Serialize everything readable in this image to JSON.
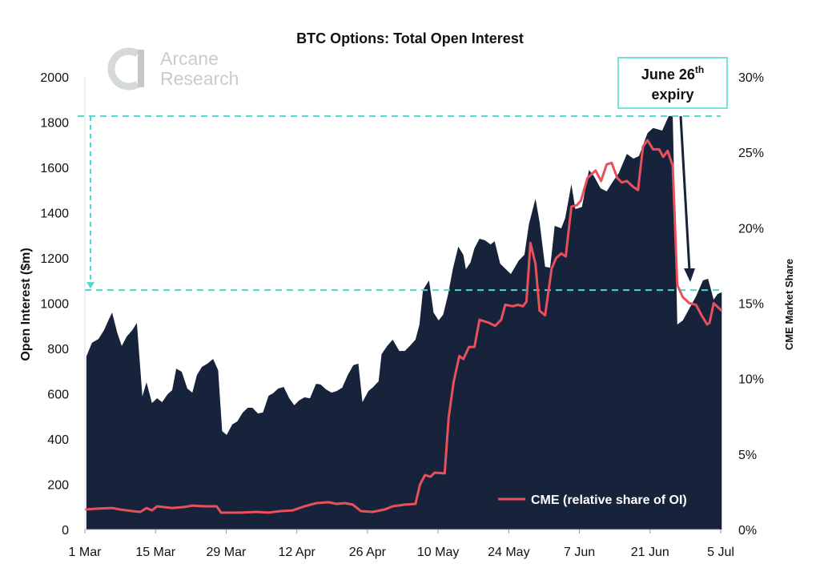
{
  "chart_data": {
    "type": "area",
    "title": "BTC Options: Total Open Interest",
    "ylabel": "Open Interest ($m)",
    "y2label": "CME Market Share",
    "ylim": [
      0,
      2000
    ],
    "y2lim": [
      0,
      30
    ],
    "yticks": [
      "0",
      "200",
      "400",
      "600",
      "800",
      "1000",
      "1200",
      "1400",
      "1600",
      "1800",
      "2000"
    ],
    "y2ticks": [
      "0%",
      "5%",
      "10%",
      "15%",
      "20%",
      "25%",
      "30%"
    ],
    "xlim_days_from_1_mar": [
      0,
      126
    ],
    "xticks": [
      {
        "day": 0,
        "label": "1 Mar"
      },
      {
        "day": 14,
        "label": "15 Mar"
      },
      {
        "day": 28,
        "label": "29 Mar"
      },
      {
        "day": 42,
        "label": "12 Apr"
      },
      {
        "day": 56,
        "label": "26 Apr"
      },
      {
        "day": 70,
        "label": "10 May"
      },
      {
        "day": 84,
        "label": "24 May"
      },
      {
        "day": 98,
        "label": "7 Jun"
      },
      {
        "day": 112,
        "label": "21 Jun"
      },
      {
        "day": 126,
        "label": "5 Jul"
      }
    ],
    "series": [
      {
        "name": "Total Open Interest ($m)",
        "kind": "area",
        "axis": "left",
        "color": "#16233a",
        "points": [
          [
            0.3,
            765
          ],
          [
            1.4,
            825
          ],
          [
            2.7,
            842
          ],
          [
            3.8,
            881
          ],
          [
            4.8,
            931
          ],
          [
            5.4,
            959
          ],
          [
            6.4,
            871
          ],
          [
            7.3,
            811
          ],
          [
            8.3,
            853
          ],
          [
            9.4,
            881
          ],
          [
            10.3,
            913
          ],
          [
            11.4,
            588
          ],
          [
            12.2,
            651
          ],
          [
            13.3,
            559
          ],
          [
            14.3,
            580
          ],
          [
            15.3,
            563
          ],
          [
            16.4,
            598
          ],
          [
            17.3,
            616
          ],
          [
            18.1,
            711
          ],
          [
            19.2,
            697
          ],
          [
            20.3,
            623
          ],
          [
            21.3,
            605
          ],
          [
            22.2,
            683
          ],
          [
            23.2,
            719
          ],
          [
            24.3,
            733
          ],
          [
            25.4,
            754
          ],
          [
            26.4,
            704
          ],
          [
            27.2,
            435
          ],
          [
            28.1,
            418
          ],
          [
            29.2,
            464
          ],
          [
            30.2,
            478
          ],
          [
            31.3,
            517
          ],
          [
            32.3,
            538
          ],
          [
            33.2,
            538
          ],
          [
            34.3,
            513
          ],
          [
            35.3,
            517
          ],
          [
            36.4,
            591
          ],
          [
            37.3,
            602
          ],
          [
            38.3,
            623
          ],
          [
            39.4,
            630
          ],
          [
            40.5,
            580
          ],
          [
            41.5,
            549
          ],
          [
            42.4,
            570
          ],
          [
            43.5,
            584
          ],
          [
            44.6,
            580
          ],
          [
            45.8,
            644
          ],
          [
            46.7,
            641
          ],
          [
            47.8,
            619
          ],
          [
            48.9,
            605
          ],
          [
            49.9,
            612
          ],
          [
            51.0,
            627
          ],
          [
            52.1,
            683
          ],
          [
            53.2,
            726
          ],
          [
            54.2,
            733
          ],
          [
            55.0,
            563
          ],
          [
            56.2,
            612
          ],
          [
            57.0,
            627
          ],
          [
            58.2,
            655
          ],
          [
            58.8,
            775
          ],
          [
            59.9,
            811
          ],
          [
            61.0,
            839
          ],
          [
            62.3,
            789
          ],
          [
            63.4,
            789
          ],
          [
            64.5,
            814
          ],
          [
            65.5,
            839
          ],
          [
            66.3,
            906
          ],
          [
            67.0,
            1058
          ],
          [
            68.2,
            1101
          ],
          [
            69.1,
            959
          ],
          [
            70.1,
            924
          ],
          [
            71.0,
            949
          ],
          [
            72.0,
            1041
          ],
          [
            72.9,
            1150
          ],
          [
            74.0,
            1250
          ],
          [
            75.0,
            1214
          ],
          [
            75.5,
            1150
          ],
          [
            76.4,
            1179
          ],
          [
            77.2,
            1243
          ],
          [
            78.2,
            1285
          ],
          [
            79.3,
            1278
          ],
          [
            80.4,
            1260
          ],
          [
            81.2,
            1274
          ],
          [
            82.3,
            1175
          ],
          [
            84.4,
            1129
          ],
          [
            86.0,
            1189
          ],
          [
            87.1,
            1214
          ],
          [
            88.0,
            1349
          ],
          [
            89.3,
            1462
          ],
          [
            90.1,
            1359
          ],
          [
            91.2,
            1161
          ],
          [
            92.2,
            1157
          ],
          [
            93.1,
            1342
          ],
          [
            94.4,
            1331
          ],
          [
            95.2,
            1377
          ],
          [
            96.4,
            1526
          ],
          [
            97.2,
            1416
          ],
          [
            98.5,
            1426
          ],
          [
            99.9,
            1589
          ],
          [
            100.9,
            1561
          ],
          [
            102.2,
            1508
          ],
          [
            103.4,
            1494
          ],
          [
            104.7,
            1540
          ],
          [
            105.8,
            1575
          ],
          [
            107.4,
            1660
          ],
          [
            108.7,
            1639
          ],
          [
            109.8,
            1650
          ],
          [
            111.5,
            1752
          ],
          [
            112.6,
            1774
          ],
          [
            114.4,
            1763
          ],
          [
            115.7,
            1827
          ],
          [
            116.5,
            1827
          ],
          [
            117.4,
            906
          ],
          [
            118.5,
            924
          ],
          [
            119.8,
            977
          ],
          [
            121.1,
            1030
          ],
          [
            122.5,
            1101
          ],
          [
            123.5,
            1108
          ],
          [
            124.6,
            1016
          ],
          [
            125.4,
            1041
          ],
          [
            126.2,
            1048
          ]
        ]
      },
      {
        "name": "CME (relative share of OI)",
        "kind": "line",
        "axis": "right",
        "color": "#e8515b",
        "points": [
          [
            0,
            1.33
          ],
          [
            2.2,
            1.38
          ],
          [
            5.4,
            1.43
          ],
          [
            7.0,
            1.33
          ],
          [
            9.4,
            1.22
          ],
          [
            11.0,
            1.17
          ],
          [
            12.2,
            1.43
          ],
          [
            13.3,
            1.27
          ],
          [
            14.3,
            1.54
          ],
          [
            17.3,
            1.43
          ],
          [
            19.7,
            1.49
          ],
          [
            21.3,
            1.59
          ],
          [
            23.7,
            1.54
          ],
          [
            26.1,
            1.54
          ],
          [
            27.0,
            1.12
          ],
          [
            30.8,
            1.12
          ],
          [
            34.0,
            1.17
          ],
          [
            36.4,
            1.12
          ],
          [
            38.8,
            1.22
          ],
          [
            41.2,
            1.27
          ],
          [
            43.5,
            1.54
          ],
          [
            45.9,
            1.75
          ],
          [
            48.3,
            1.81
          ],
          [
            49.9,
            1.7
          ],
          [
            51.5,
            1.75
          ],
          [
            53.1,
            1.65
          ],
          [
            54.7,
            1.22
          ],
          [
            57.0,
            1.17
          ],
          [
            59.4,
            1.33
          ],
          [
            61.0,
            1.54
          ],
          [
            63.4,
            1.65
          ],
          [
            65.5,
            1.7
          ],
          [
            66.4,
            2.97
          ],
          [
            67.4,
            3.61
          ],
          [
            68.5,
            3.5
          ],
          [
            69.3,
            3.77
          ],
          [
            71.3,
            3.72
          ],
          [
            72.1,
            7.43
          ],
          [
            73.1,
            9.82
          ],
          [
            74.2,
            11.5
          ],
          [
            75.0,
            11.3
          ],
          [
            76.1,
            12.1
          ],
          [
            77.2,
            12.1
          ],
          [
            78.2,
            13.9
          ],
          [
            80.1,
            13.7
          ],
          [
            81.3,
            13.5
          ],
          [
            82.5,
            13.9
          ],
          [
            83.3,
            14.9
          ],
          [
            84.8,
            14.8
          ],
          [
            85.8,
            14.9
          ],
          [
            86.8,
            14.8
          ],
          [
            87.5,
            15.1
          ],
          [
            88.3,
            19.0
          ],
          [
            89.3,
            17.6
          ],
          [
            90.1,
            14.5
          ],
          [
            91.2,
            14.2
          ],
          [
            92.5,
            17.3
          ],
          [
            93.4,
            18.0
          ],
          [
            94.4,
            18.3
          ],
          [
            95.3,
            18.1
          ],
          [
            96.4,
            21.4
          ],
          [
            97.5,
            21.5
          ],
          [
            98.3,
            21.8
          ],
          [
            99.6,
            23.3
          ],
          [
            101.2,
            23.8
          ],
          [
            102.3,
            23.1
          ],
          [
            103.4,
            24.2
          ],
          [
            104.4,
            24.3
          ],
          [
            105.5,
            23.3
          ],
          [
            106.4,
            23.0
          ],
          [
            107.4,
            23.1
          ],
          [
            108.7,
            22.7
          ],
          [
            109.6,
            22.5
          ],
          [
            110.6,
            25.4
          ],
          [
            111.5,
            25.8
          ],
          [
            112.6,
            25.2
          ],
          [
            113.8,
            25.2
          ],
          [
            114.6,
            24.7
          ],
          [
            115.5,
            25.1
          ],
          [
            116.5,
            24.1
          ],
          [
            117.4,
            16.2
          ],
          [
            118.5,
            15.4
          ],
          [
            119.8,
            15.0
          ],
          [
            121.1,
            14.9
          ],
          [
            122.2,
            14.2
          ],
          [
            123.3,
            13.6
          ],
          [
            123.8,
            13.7
          ],
          [
            124.6,
            15.0
          ],
          [
            126.2,
            14.5
          ]
        ]
      }
    ],
    "legend": {
      "label": "CME (relative share of OI)",
      "placement": "bottom-right"
    },
    "annotations": {
      "expiry_label_main": "June 26",
      "expiry_label_sup": "th",
      "expiry_label_line2": "expiry",
      "before_level": 1827,
      "after_level": 1058
    },
    "grid": false
  },
  "logo": {
    "line1": "Arcane",
    "line2": "Research"
  },
  "colors": {
    "area": "#16233a",
    "cme": "#e8515b",
    "guide": "#4fd6cc",
    "logo": "#c9cccc"
  }
}
